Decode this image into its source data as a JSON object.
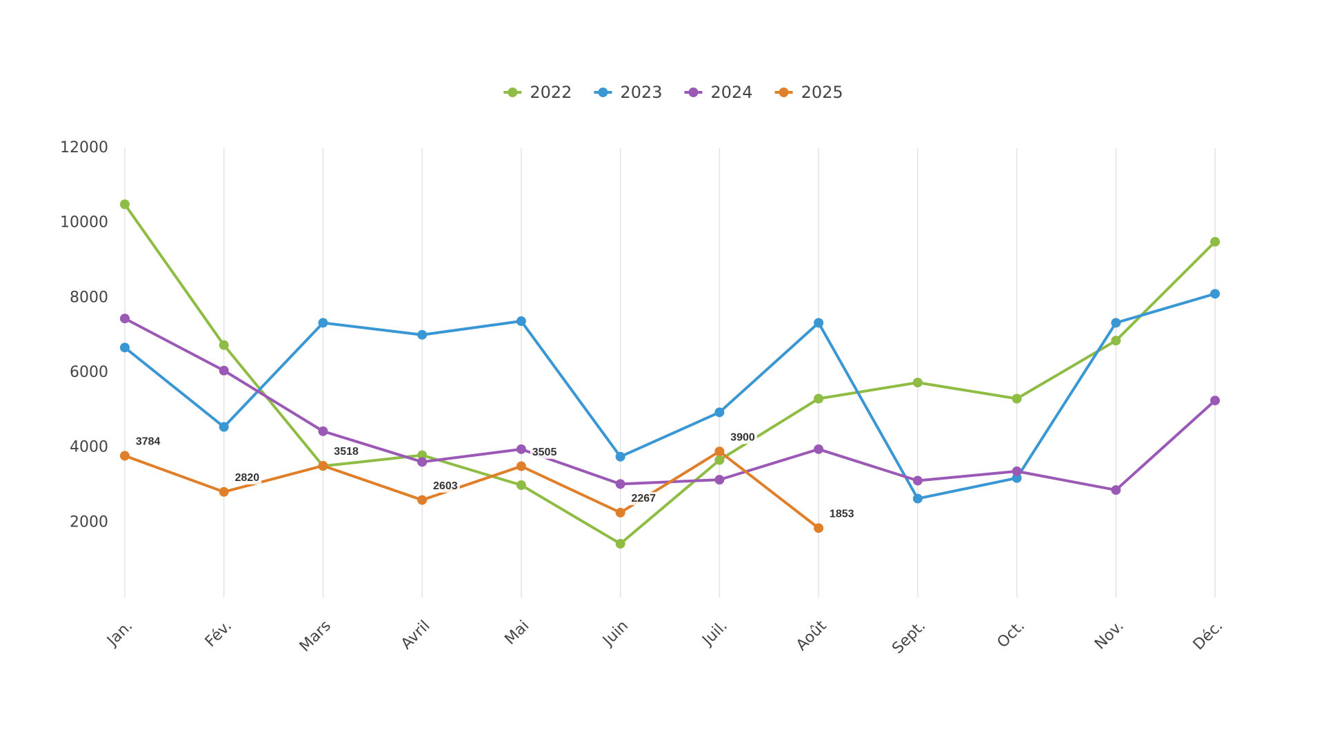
{
  "chart_data": {
    "type": "line",
    "categories": [
      "Jan.",
      "Fév.",
      "Mars",
      "Avril",
      "Mai",
      "Juin",
      "Juil.",
      "Août",
      "Sept.",
      "Oct.",
      "Nov.",
      "Déc."
    ],
    "series": [
      {
        "name": "2022",
        "color": "#8fbc45",
        "values": [
          10500,
          6740,
          3510,
          3800,
          3000,
          1435,
          3670,
          5310,
          5740,
          5310,
          6860,
          9500
        ]
      },
      {
        "name": "2023",
        "color": "#3a97d4",
        "values": [
          6675,
          4555,
          7335,
          7015,
          7380,
          3760,
          4945,
          7335,
          2640,
          3190,
          7335,
          8110
        ]
      },
      {
        "name": "2024",
        "color": "#9b59b6",
        "values": [
          7450,
          6060,
          4440,
          3620,
          3960,
          3030,
          3145,
          3960,
          3120,
          3370,
          2870,
          5260
        ]
      },
      {
        "name": "2025",
        "color": "#e07f2a",
        "values": [
          3784,
          2820,
          3518,
          2603,
          3505,
          2267,
          3900,
          1853,
          null,
          null,
          null,
          null
        ],
        "show_labels": true
      }
    ],
    "ylim": [
      0,
      12000
    ],
    "yticks": [
      2000,
      4000,
      6000,
      8000,
      10000,
      12000
    ],
    "grid": "x",
    "legend": "top"
  }
}
